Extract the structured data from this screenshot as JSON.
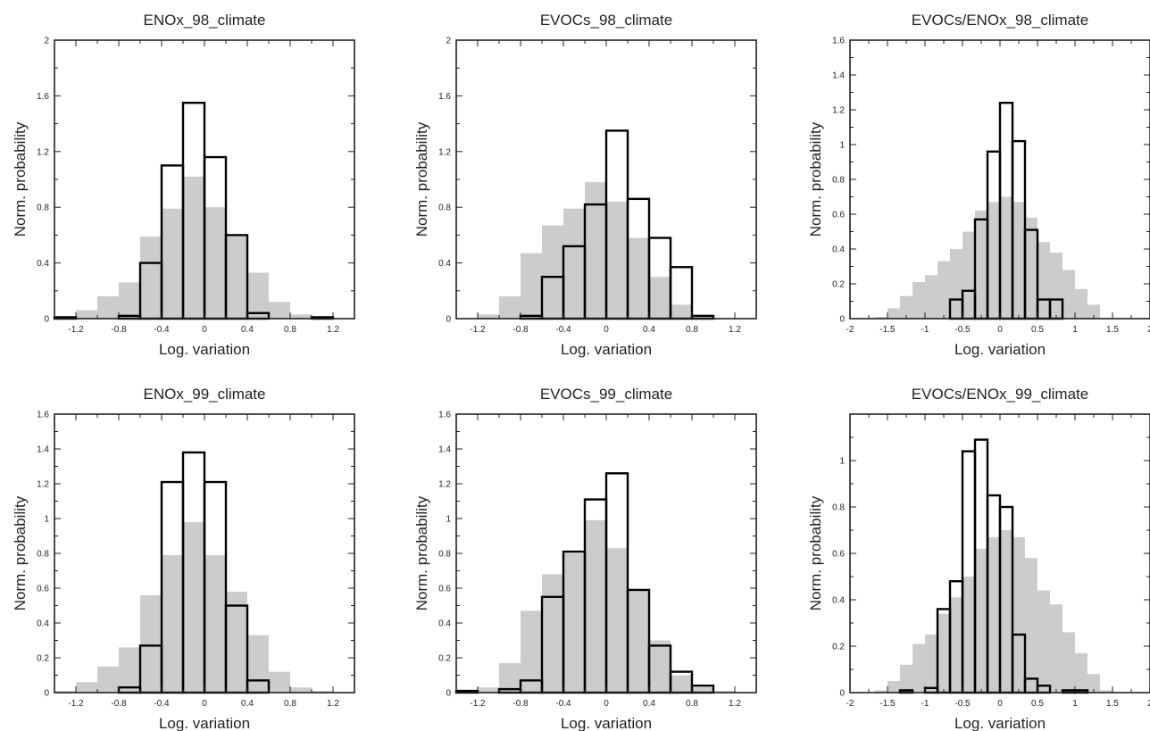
{
  "chart_data": [
    {
      "type": "bar",
      "title": "ENOx_98_climate",
      "xlabel": "Log. variation",
      "ylabel": "Norm. probability",
      "xlim": [
        -1.4,
        1.4
      ],
      "ylim": [
        0,
        2
      ],
      "xticks": [
        -1.2,
        -0.8,
        -0.4,
        0,
        0.4,
        0.8,
        1.2
      ],
      "xtick_labels": [
        "-1.2",
        "-0.8",
        "-0.4",
        "0",
        "0.4",
        "0.8",
        "1.2"
      ],
      "yticks": [
        0,
        0.4,
        0.8,
        1.2,
        1.6,
        2
      ],
      "ytick_labels": [
        "0",
        "0.4",
        "0.8",
        "1.2",
        "1.6",
        "2"
      ],
      "bin_width": 0.2,
      "series": [
        {
          "style": "filled-gray",
          "x": [
            -1.3,
            -1.1,
            -0.9,
            -0.7,
            -0.5,
            -0.3,
            -0.1,
            0.1,
            0.3,
            0.5,
            0.7,
            0.9,
            1.1,
            1.3
          ],
          "values": [
            0.01,
            0.06,
            0.16,
            0.26,
            0.59,
            0.79,
            1.02,
            0.8,
            0.59,
            0.33,
            0.12,
            0.03,
            0.01,
            0
          ]
        },
        {
          "style": "outline",
          "x": [
            -1.3,
            -1.1,
            -0.9,
            -0.7,
            -0.5,
            -0.3,
            -0.1,
            0.1,
            0.3,
            0.5,
            0.7,
            0.9,
            1.1,
            1.3
          ],
          "values": [
            0.01,
            0,
            0,
            0.02,
            0.4,
            1.1,
            1.55,
            1.16,
            0.6,
            0.04,
            0,
            0,
            0.01,
            0
          ]
        }
      ]
    },
    {
      "type": "bar",
      "title": "EVOCs_98_climate",
      "xlabel": "Log. variation",
      "ylabel": "Norm. probability",
      "xlim": [
        -1.4,
        1.4
      ],
      "ylim": [
        0,
        2
      ],
      "xticks": [
        -1.2,
        -0.8,
        -0.4,
        0,
        0.4,
        0.8,
        1.2
      ],
      "xtick_labels": [
        "-1.2",
        "-0.8",
        "-0.4",
        "0",
        "0.4",
        "0.8",
        "1.2"
      ],
      "yticks": [
        0,
        0.4,
        0.8,
        1.2,
        1.6,
        2
      ],
      "ytick_labels": [
        "0",
        "0.4",
        "0.8",
        "1.2",
        "1.6",
        "2"
      ],
      "bin_width": 0.2,
      "series": [
        {
          "style": "filled-gray",
          "x": [
            -1.3,
            -1.1,
            -0.9,
            -0.7,
            -0.5,
            -0.3,
            -0.1,
            0.1,
            0.3,
            0.5,
            0.7,
            0.9,
            1.1,
            1.3
          ],
          "values": [
            0,
            0.03,
            0.16,
            0.47,
            0.67,
            0.79,
            0.98,
            0.84,
            0.58,
            0.3,
            0.1,
            0.01,
            0,
            0
          ]
        },
        {
          "style": "outline",
          "x": [
            -1.3,
            -1.1,
            -0.9,
            -0.7,
            -0.5,
            -0.3,
            -0.1,
            0.1,
            0.3,
            0.5,
            0.7,
            0.9,
            1.1,
            1.3
          ],
          "values": [
            0,
            0,
            0,
            0.02,
            0.3,
            0.52,
            0.82,
            1.35,
            0.86,
            0.58,
            0.37,
            0.02,
            0,
            0
          ]
        }
      ]
    },
    {
      "type": "bar",
      "title": "EVOCs/ENOx_98_climate",
      "xlabel": "Log. variation",
      "ylabel": "Norm. probability",
      "xlim": [
        -2,
        2
      ],
      "ylim": [
        0,
        1.6
      ],
      "xticks": [
        -2,
        -1.5,
        -1,
        -0.5,
        0,
        0.5,
        1,
        1.5,
        2
      ],
      "xtick_labels": [
        "-2",
        "-1.5",
        "-1",
        "-0.5",
        "0",
        "0.5",
        "1",
        "1.5",
        "2"
      ],
      "yticks": [
        0,
        0.2,
        0.4,
        0.6,
        0.8,
        1,
        1.2,
        1.4,
        1.6
      ],
      "ytick_labels": [
        "0",
        "0.2",
        "0.4",
        "0.6",
        "0.8",
        "1",
        "1.2",
        "1.4",
        "1.6"
      ],
      "bin_width": 0.1667,
      "series": [
        {
          "style": "filled-gray",
          "x": [
            -1.9167,
            -1.75,
            -1.5833,
            -1.4167,
            -1.25,
            -1.0833,
            -0.9167,
            -0.75,
            -0.5833,
            -0.4167,
            -0.25,
            -0.0833,
            0.0833,
            0.25,
            0.4167,
            0.5833,
            0.75,
            0.9167,
            1.0833,
            1.25,
            1.4167,
            1.5833,
            1.75,
            1.9167
          ],
          "values": [
            0,
            0,
            0.01,
            0.06,
            0.13,
            0.21,
            0.25,
            0.33,
            0.4,
            0.5,
            0.62,
            0.67,
            0.7,
            0.67,
            0.58,
            0.44,
            0.38,
            0.28,
            0.17,
            0.08,
            0,
            0,
            0,
            0
          ]
        },
        {
          "style": "outline",
          "x": [
            -1.9167,
            -1.75,
            -1.5833,
            -1.4167,
            -1.25,
            -1.0833,
            -0.9167,
            -0.75,
            -0.5833,
            -0.4167,
            -0.25,
            -0.0833,
            0.0833,
            0.25,
            0.4167,
            0.5833,
            0.75,
            0.9167,
            1.0833,
            1.25,
            1.4167,
            1.5833,
            1.75,
            1.9167
          ],
          "values": [
            0,
            0,
            0,
            0,
            0,
            0,
            0,
            0,
            0.11,
            0.16,
            0.57,
            0.96,
            1.24,
            1.02,
            0.51,
            0.11,
            0.11,
            0,
            0,
            0,
            0,
            0,
            0,
            0
          ]
        }
      ]
    },
    {
      "type": "bar",
      "title": "ENOx_99_climate",
      "xlabel": "Log. variation",
      "ylabel": "Norm. probability",
      "xlim": [
        -1.4,
        1.4
      ],
      "ylim": [
        0,
        1.6
      ],
      "xticks": [
        -1.2,
        -0.8,
        -0.4,
        0,
        0.4,
        0.8,
        1.2
      ],
      "xtick_labels": [
        "-1.2",
        "-0.8",
        "-0.4",
        "0",
        "0.4",
        "0.8",
        "1.2"
      ],
      "yticks": [
        0,
        0.2,
        0.4,
        0.6,
        0.8,
        1,
        1.2,
        1.4,
        1.6
      ],
      "ytick_labels": [
        "0",
        "0.2",
        "0.4",
        "0.6",
        "0.8",
        "1",
        "1.2",
        "1.4",
        "1.6"
      ],
      "bin_width": 0.2,
      "series": [
        {
          "style": "filled-gray",
          "x": [
            -1.3,
            -1.1,
            -0.9,
            -0.7,
            -0.5,
            -0.3,
            -0.1,
            0.1,
            0.3,
            0.5,
            0.7,
            0.9,
            1.1,
            1.3
          ],
          "values": [
            0.01,
            0.06,
            0.15,
            0.26,
            0.56,
            0.79,
            0.98,
            0.79,
            0.58,
            0.33,
            0.12,
            0.03,
            0.01,
            0
          ]
        },
        {
          "style": "outline",
          "x": [
            -1.3,
            -1.1,
            -0.9,
            -0.7,
            -0.5,
            -0.3,
            -0.1,
            0.1,
            0.3,
            0.5,
            0.7,
            0.9,
            1.1,
            1.3
          ],
          "values": [
            0,
            0,
            0,
            0.03,
            0.27,
            1.21,
            1.38,
            1.21,
            0.5,
            0.07,
            0,
            0,
            0,
            0
          ]
        }
      ]
    },
    {
      "type": "bar",
      "title": "EVOCs_99_climate",
      "xlabel": "Log. variation",
      "ylabel": "Norm. probability",
      "xlim": [
        -1.4,
        1.4
      ],
      "ylim": [
        0,
        1.6
      ],
      "xticks": [
        -1.2,
        -0.8,
        -0.4,
        0,
        0.4,
        0.8,
        1.2
      ],
      "xtick_labels": [
        "-1.2",
        "-0.8",
        "-0.4",
        "0",
        "0.4",
        "0.8",
        "1.2"
      ],
      "yticks": [
        0,
        0.2,
        0.4,
        0.6,
        0.8,
        1,
        1.2,
        1.4,
        1.6
      ],
      "ytick_labels": [
        "0",
        "0.2",
        "0.4",
        "0.6",
        "0.8",
        "1",
        "1.2",
        "1.4",
        "1.6"
      ],
      "bin_width": 0.2,
      "series": [
        {
          "style": "filled-gray",
          "x": [
            -1.3,
            -1.1,
            -0.9,
            -0.7,
            -0.5,
            -0.3,
            -0.1,
            0.1,
            0.3,
            0.5,
            0.7,
            0.9,
            1.1,
            1.3
          ],
          "values": [
            0.01,
            0.03,
            0.17,
            0.47,
            0.68,
            0.8,
            0.99,
            0.83,
            0.59,
            0.3,
            0.1,
            0.03,
            0.01,
            0
          ]
        },
        {
          "style": "outline",
          "x": [
            -1.3,
            -1.1,
            -0.9,
            -0.7,
            -0.5,
            -0.3,
            -0.1,
            0.1,
            0.3,
            0.5,
            0.7,
            0.9,
            1.1,
            1.3
          ],
          "values": [
            0.01,
            0,
            0.02,
            0.07,
            0.55,
            0.81,
            1.11,
            1.26,
            0.59,
            0.27,
            0.12,
            0.04,
            0,
            0
          ]
        }
      ]
    },
    {
      "type": "bar",
      "title": "EVOCs/ENOx_99_climate",
      "xlabel": "Log. variation",
      "ylabel": "Norm. probability",
      "xlim": [
        -2,
        2
      ],
      "ylim": [
        0,
        1.2
      ],
      "xticks": [
        -2,
        -1.5,
        -1,
        -0.5,
        0,
        0.5,
        1,
        1.5,
        2
      ],
      "xtick_labels": [
        "-2",
        "-1.5",
        "-1",
        "-0.5",
        "0",
        "0.5",
        "1",
        "1.5",
        "2"
      ],
      "yticks": [
        0,
        0.2,
        0.4,
        0.6,
        0.8,
        1
      ],
      "ytick_labels": [
        "0",
        "0.2",
        "0.4",
        "0.6",
        "0.8",
        "1"
      ],
      "bin_width": 0.1667,
      "series": [
        {
          "style": "filled-gray",
          "x": [
            -1.9167,
            -1.75,
            -1.5833,
            -1.4167,
            -1.25,
            -1.0833,
            -0.9167,
            -0.75,
            -0.5833,
            -0.4167,
            -0.25,
            -0.0833,
            0.0833,
            0.25,
            0.4167,
            0.5833,
            0.75,
            0.9167,
            1.0833,
            1.25,
            1.4167,
            1.5833,
            1.75,
            1.9167
          ],
          "values": [
            0,
            0,
            0.01,
            0.05,
            0.12,
            0.21,
            0.25,
            0.34,
            0.41,
            0.5,
            0.62,
            0.67,
            0.7,
            0.67,
            0.58,
            0.44,
            0.38,
            0.26,
            0.17,
            0.08,
            0.01,
            0,
            0,
            0
          ]
        },
        {
          "style": "outline",
          "x": [
            -1.9167,
            -1.75,
            -1.5833,
            -1.4167,
            -1.25,
            -1.0833,
            -0.9167,
            -0.75,
            -0.5833,
            -0.4167,
            -0.25,
            -0.0833,
            0.0833,
            0.25,
            0.4167,
            0.5833,
            0.75,
            0.9167,
            1.0833,
            1.25,
            1.4167,
            1.5833,
            1.75,
            1.9167
          ],
          "values": [
            0,
            0,
            0,
            0,
            0.01,
            0,
            0.02,
            0.36,
            0.48,
            1.04,
            1.09,
            0.85,
            0.8,
            0.25,
            0.06,
            0.03,
            0,
            0.01,
            0.01,
            0,
            0,
            0,
            0,
            0
          ]
        }
      ]
    }
  ]
}
